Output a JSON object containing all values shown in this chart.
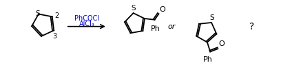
{
  "bg_color": "#ffffff",
  "reagent_line1": "PhCOCl",
  "reagent_line2": "AlCl₃",
  "reagent_color": "#0000cc",
  "or_text": "or",
  "question_mark": "?",
  "label_2": "2",
  "label_3": "3",
  "S_label": "S",
  "O_label": "O",
  "Ph_label": "Ph",
  "line_color": "#000000",
  "figsize": [
    4.08,
    0.92
  ],
  "dpi": 100
}
